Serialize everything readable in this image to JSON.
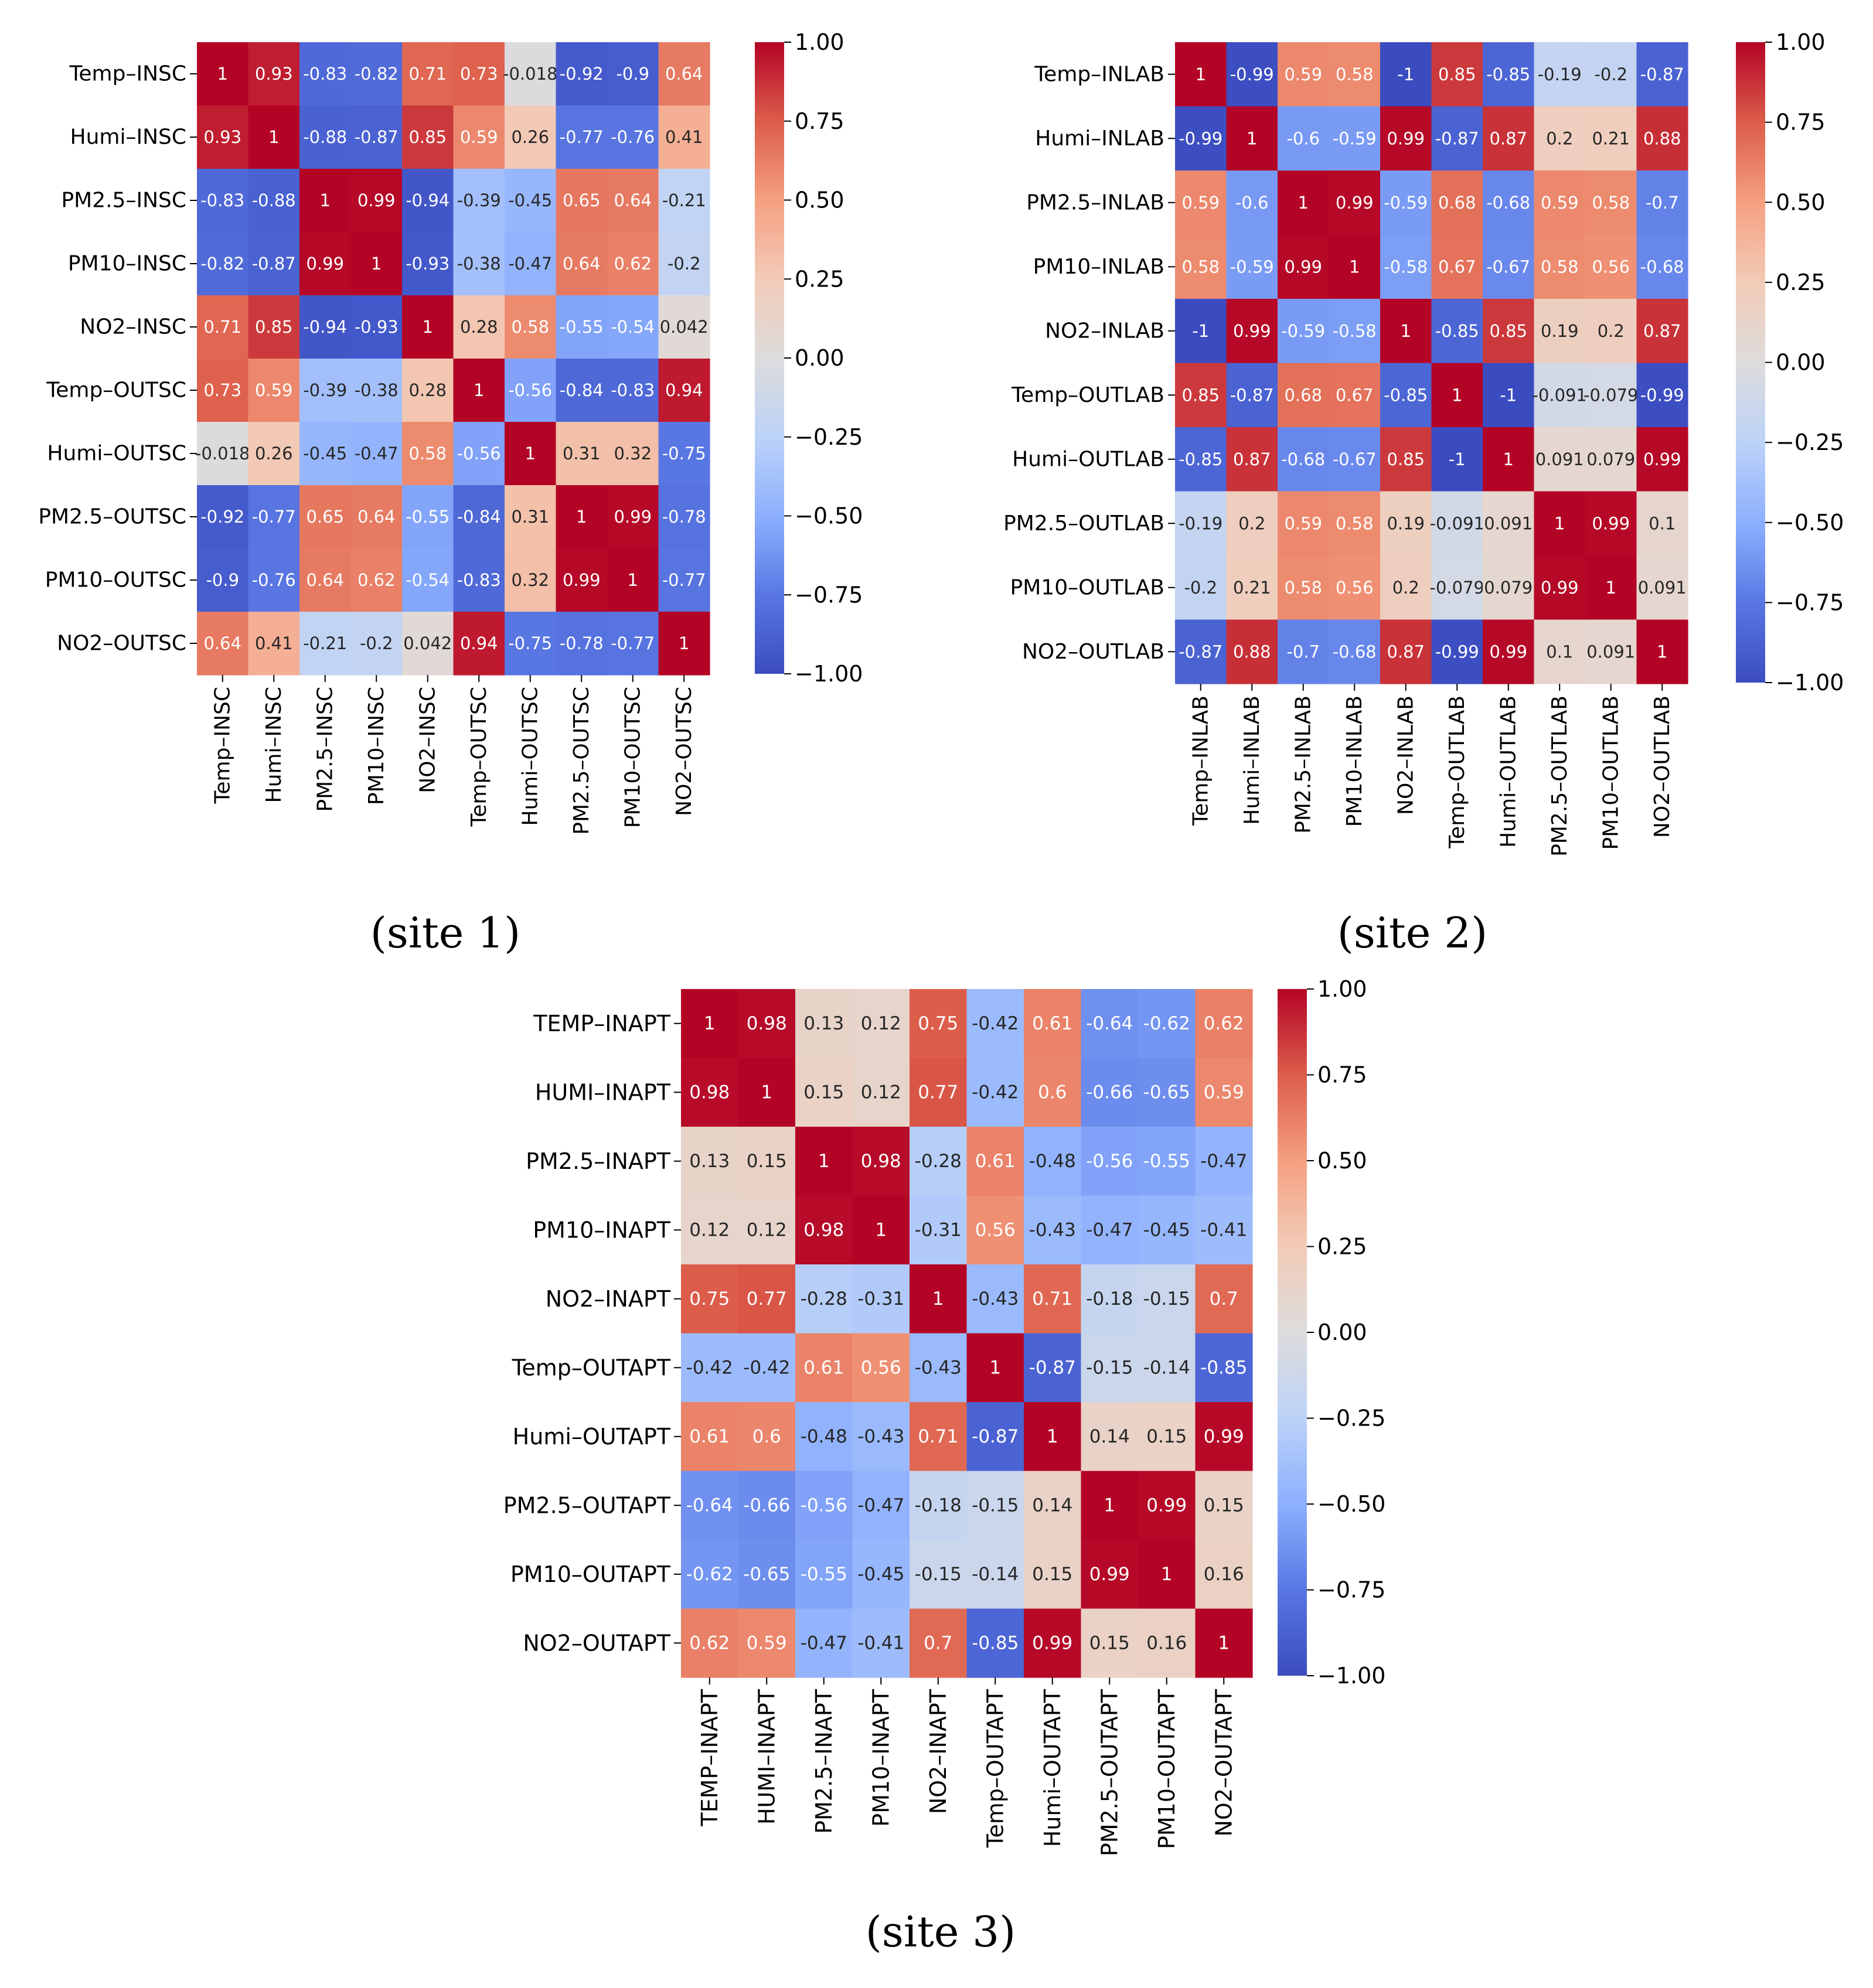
{
  "chart_data": [
    {
      "type": "heatmap",
      "caption": "(site 1)",
      "labels": [
        "Temp–INSC",
        "Humi–INSC",
        "PM2.5–INSC",
        "PM10–INSC",
        "NO2–INSC",
        "Temp–OUTSC",
        "Humi–OUTSC",
        "PM2.5–OUTSC",
        "PM10–OUTSC",
        "NO2–OUTSC"
      ],
      "matrix": [
        [
          1,
          0.93,
          -0.83,
          -0.82,
          0.71,
          0.73,
          -0.018,
          -0.92,
          -0.9,
          0.64
        ],
        [
          0.93,
          1,
          -0.88,
          -0.87,
          0.85,
          0.59,
          0.26,
          -0.77,
          -0.76,
          0.41
        ],
        [
          -0.83,
          -0.88,
          1,
          0.99,
          -0.94,
          -0.39,
          -0.45,
          0.65,
          0.64,
          -0.21
        ],
        [
          -0.82,
          -0.87,
          0.99,
          1,
          -0.93,
          -0.38,
          -0.47,
          0.64,
          0.62,
          -0.2
        ],
        [
          0.71,
          0.85,
          -0.94,
          -0.93,
          1,
          0.28,
          0.58,
          -0.55,
          -0.54,
          0.042
        ],
        [
          0.73,
          0.59,
          -0.39,
          -0.38,
          0.28,
          1,
          -0.56,
          -0.84,
          -0.83,
          0.94
        ],
        [
          -0.018,
          0.26,
          -0.45,
          -0.47,
          0.58,
          -0.56,
          1,
          0.31,
          0.32,
          -0.75
        ],
        [
          -0.92,
          -0.77,
          0.65,
          0.64,
          -0.55,
          -0.84,
          0.31,
          1,
          0.99,
          -0.78
        ],
        [
          -0.9,
          -0.76,
          0.64,
          0.62,
          -0.54,
          -0.83,
          0.32,
          0.99,
          1,
          -0.77
        ],
        [
          0.64,
          0.41,
          -0.21,
          -0.2,
          0.042,
          0.94,
          -0.75,
          -0.78,
          -0.77,
          1
        ]
      ],
      "colorbar_ticks": [
        "1.00",
        "0.75",
        "0.50",
        "0.25",
        "0.00",
        "−0.25",
        "−0.50",
        "−0.75",
        "−1.00"
      ],
      "vmin": -1,
      "vmax": 1,
      "colormap": "coolwarm"
    },
    {
      "type": "heatmap",
      "caption": "(site 2)",
      "labels": [
        "Temp–INLAB",
        "Humi–INLAB",
        "PM2.5–INLAB",
        "PM10–INLAB",
        "NO2–INLAB",
        "Temp–OUTLAB",
        "Humi–OUTLAB",
        "PM2.5–OUTLAB",
        "PM10–OUTLAB",
        "NO2–OUTLAB"
      ],
      "matrix": [
        [
          1,
          -0.99,
          0.59,
          0.58,
          -1,
          0.85,
          -0.85,
          -0.19,
          -0.2,
          -0.87
        ],
        [
          -0.99,
          1,
          -0.6,
          -0.59,
          0.99,
          -0.87,
          0.87,
          0.2,
          0.21,
          0.88
        ],
        [
          0.59,
          -0.6,
          1,
          0.99,
          -0.59,
          0.68,
          -0.68,
          0.59,
          0.58,
          -0.7
        ],
        [
          0.58,
          -0.59,
          0.99,
          1,
          -0.58,
          0.67,
          -0.67,
          0.58,
          0.56,
          -0.68
        ],
        [
          -1,
          0.99,
          -0.59,
          -0.58,
          1,
          -0.85,
          0.85,
          0.19,
          0.2,
          0.87
        ],
        [
          0.85,
          -0.87,
          0.68,
          0.67,
          -0.85,
          1,
          -1,
          -0.091,
          -0.079,
          -0.99
        ],
        [
          -0.85,
          0.87,
          -0.68,
          -0.67,
          0.85,
          -1,
          1,
          0.091,
          0.079,
          0.99
        ],
        [
          -0.19,
          0.2,
          0.59,
          0.58,
          0.19,
          -0.091,
          0.091,
          1,
          0.99,
          0.1
        ],
        [
          -0.2,
          0.21,
          0.58,
          0.56,
          0.2,
          -0.079,
          0.079,
          0.99,
          1,
          0.091
        ],
        [
          -0.87,
          0.88,
          -0.7,
          -0.68,
          0.87,
          -0.99,
          0.99,
          0.1,
          0.091,
          1
        ]
      ],
      "colorbar_ticks": [
        "1.00",
        "0.75",
        "0.50",
        "0.25",
        "0.00",
        "−0.25",
        "−0.50",
        "−0.75",
        "−1.00"
      ],
      "vmin": -1,
      "vmax": 1,
      "colormap": "coolwarm"
    },
    {
      "type": "heatmap",
      "caption": "(site 3)",
      "labels": [
        "TEMP–INAPT",
        "HUMI–INAPT",
        "PM2.5–INAPT",
        "PM10–INAPT",
        "NO2–INAPT",
        "Temp–OUTAPT",
        "Humi–OUTAPT",
        "PM2.5–OUTAPT",
        "PM10–OUTAPT",
        "NO2–OUTAPT"
      ],
      "matrix": [
        [
          1,
          0.98,
          0.13,
          0.12,
          0.75,
          -0.42,
          0.61,
          -0.64,
          -0.62,
          0.62
        ],
        [
          0.98,
          1,
          0.15,
          0.12,
          0.77,
          -0.42,
          0.6,
          -0.66,
          -0.65,
          0.59
        ],
        [
          0.13,
          0.15,
          1,
          0.98,
          -0.28,
          0.61,
          -0.48,
          -0.56,
          -0.55,
          -0.47
        ],
        [
          0.12,
          0.12,
          0.98,
          1,
          -0.31,
          0.56,
          -0.43,
          -0.47,
          -0.45,
          -0.41
        ],
        [
          0.75,
          0.77,
          -0.28,
          -0.31,
          1,
          -0.43,
          0.71,
          -0.18,
          -0.15,
          0.7
        ],
        [
          -0.42,
          -0.42,
          0.61,
          0.56,
          -0.43,
          1,
          -0.87,
          -0.15,
          -0.14,
          -0.85
        ],
        [
          0.61,
          0.6,
          -0.48,
          -0.43,
          0.71,
          -0.87,
          1,
          0.14,
          0.15,
          0.99
        ],
        [
          -0.64,
          -0.66,
          -0.56,
          -0.47,
          -0.18,
          -0.15,
          0.14,
          1,
          0.99,
          0.15
        ],
        [
          -0.62,
          -0.65,
          -0.55,
          -0.45,
          -0.15,
          -0.14,
          0.15,
          0.99,
          1,
          0.16
        ],
        [
          0.62,
          0.59,
          -0.47,
          -0.41,
          0.7,
          -0.85,
          0.99,
          0.15,
          0.16,
          1
        ]
      ],
      "colorbar_ticks": [
        "1.00",
        "0.75",
        "0.50",
        "0.25",
        "0.00",
        "−0.25",
        "−0.50",
        "−0.75",
        "−1.00"
      ],
      "vmin": -1,
      "vmax": 1,
      "colormap": "coolwarm"
    }
  ]
}
